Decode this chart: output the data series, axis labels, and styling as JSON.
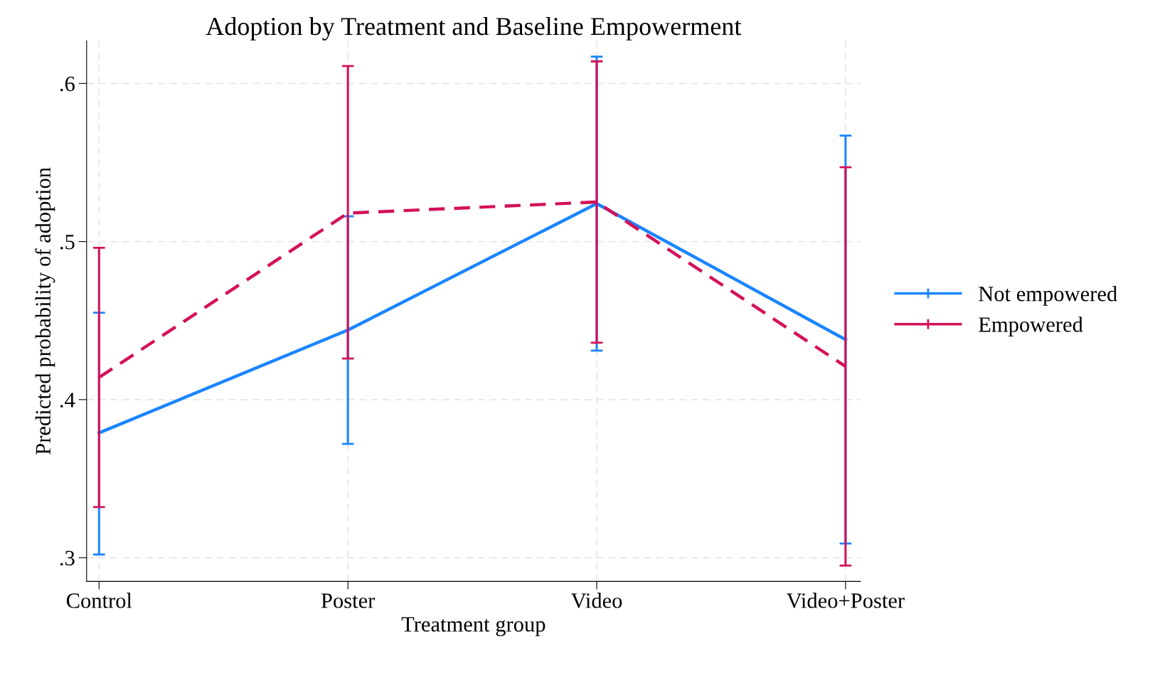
{
  "chart_data": {
    "type": "line",
    "title": "Adoption by Treatment and Baseline Empowerment",
    "xlabel": "Treatment group",
    "ylabel": "Predicted probability of adoption",
    "categories": [
      "Control",
      "Poster",
      "Video",
      "Video+Poster"
    ],
    "series": [
      {
        "name": "Not empowered",
        "color": "#1a85ff",
        "line_style": "solid",
        "values": [
          0.379,
          0.444,
          0.524,
          0.438
        ],
        "errors": [
          [
            0.302,
            0.455
          ],
          [
            0.372,
            0.516
          ],
          [
            0.431,
            0.617
          ],
          [
            0.309,
            0.567
          ]
        ]
      },
      {
        "name": "Empowered",
        "color": "#d41159",
        "line_style": "dashed",
        "values": [
          0.414,
          0.518,
          0.525,
          0.421
        ],
        "errors": [
          [
            0.332,
            0.496
          ],
          [
            0.426,
            0.611
          ],
          [
            0.436,
            0.614
          ],
          [
            0.295,
            0.547
          ]
        ]
      }
    ],
    "ylim": [
      0.285,
      0.627
    ],
    "yticks": [
      {
        "value": 0.3,
        "label": ".3"
      },
      {
        "value": 0.4,
        "label": ".4"
      },
      {
        "value": 0.5,
        "label": ".5"
      },
      {
        "value": 0.6,
        "label": ".6"
      }
    ],
    "grid": true,
    "legend": "right",
    "marker": "none"
  }
}
